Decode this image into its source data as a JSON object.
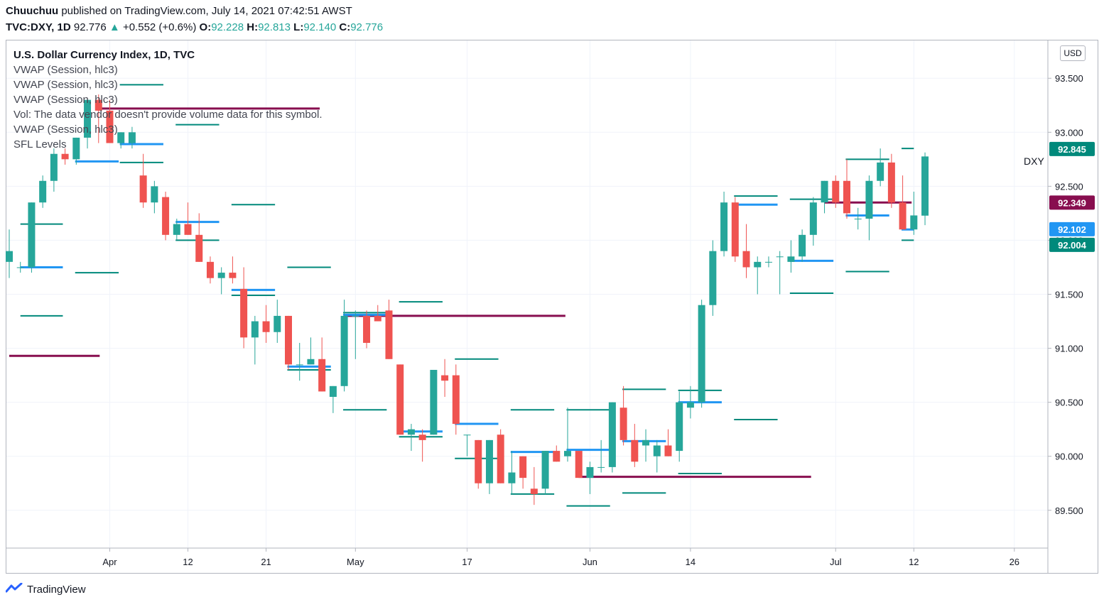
{
  "header": {
    "author": "Chuuchuu",
    "published_text": "published on TradingView.com, July 14, 2021 07:42:51 AWST",
    "symbol": "TVC:DXY, 1D",
    "last": "92.776",
    "change": "+0.552 (+0.6%)",
    "o_label": "O:",
    "o_value": "92.228",
    "h_label": "H:",
    "h_value": "92.813",
    "l_label": "L:",
    "l_value": "92.140",
    "c_label": "C:",
    "c_value": "92.776"
  },
  "legend": {
    "title": "U.S. Dollar Currency Index, 1D, TVC",
    "lines": [
      "VWAP (Session, hlc3)",
      "VWAP (Session, hlc3)",
      "VWAP (Session, hlc3)",
      "Vol: The data vendor doesn't provide volume data for this symbol.",
      "VWAP (Session, hlc3)",
      "SFL Levels"
    ]
  },
  "currency_button": "USD",
  "series_label": "DXY",
  "footer_brand": "TradingView",
  "colors": {
    "up": "#26a69a",
    "down": "#ef5350",
    "vwap": "#2196f3",
    "level_teal": "#00897b",
    "level_maroon": "#880e4f"
  },
  "chart_data": {
    "type": "candlestick",
    "symbol": "DXY",
    "timeframe": "1D",
    "ylim": [
      89.15,
      93.85
    ],
    "y_ticks": [
      89.5,
      90.0,
      90.5,
      91.0,
      91.5,
      92.0,
      92.5,
      93.0,
      93.5
    ],
    "y_tick_labels": [
      "89.500",
      "90.000",
      "90.500",
      "91.000",
      "91.500",
      "92.000",
      "92.500",
      "93.000",
      "93.500"
    ],
    "x_ticks": [
      {
        "i": 9,
        "label": "Apr"
      },
      {
        "i": 16,
        "label": "12"
      },
      {
        "i": 23,
        "label": "21"
      },
      {
        "i": 31,
        "label": "May"
      },
      {
        "i": 41,
        "label": "17"
      },
      {
        "i": 52,
        "label": "Jun"
      },
      {
        "i": 61,
        "label": "14"
      },
      {
        "i": 74,
        "label": "Jul"
      },
      {
        "i": 81,
        "label": "12"
      },
      {
        "i": 90,
        "label": "26"
      }
    ],
    "candles": [
      [
        91.8,
        92.1,
        91.65,
        91.9
      ],
      [
        91.75,
        91.8,
        91.7,
        91.75
      ],
      [
        91.75,
        92.35,
        91.7,
        92.35
      ],
      [
        92.35,
        92.6,
        92.3,
        92.55
      ],
      [
        92.55,
        92.85,
        92.45,
        92.8
      ],
      [
        92.8,
        92.85,
        92.7,
        92.75
      ],
      [
        92.75,
        92.95,
        92.7,
        92.95
      ],
      [
        92.95,
        93.3,
        92.85,
        93.3
      ],
      [
        93.3,
        93.35,
        92.9,
        93.2
      ],
      [
        93.2,
        93.3,
        92.9,
        92.9
      ],
      [
        92.9,
        93.0,
        92.85,
        93.0
      ],
      [
        92.9,
        93.05,
        92.85,
        93.0
      ],
      [
        92.6,
        92.8,
        92.3,
        92.35
      ],
      [
        92.35,
        92.55,
        92.25,
        92.5
      ],
      [
        92.4,
        92.45,
        92.0,
        92.05
      ],
      [
        92.05,
        92.2,
        92.0,
        92.15
      ],
      [
        92.15,
        92.35,
        92.05,
        92.05
      ],
      [
        92.05,
        92.25,
        91.8,
        91.8
      ],
      [
        91.8,
        91.85,
        91.6,
        91.65
      ],
      [
        91.65,
        91.75,
        91.5,
        91.7
      ],
      [
        91.7,
        91.85,
        91.6,
        91.65
      ],
      [
        91.55,
        91.75,
        91.0,
        91.1
      ],
      [
        91.1,
        91.3,
        90.85,
        91.25
      ],
      [
        91.25,
        91.4,
        91.05,
        91.15
      ],
      [
        91.15,
        91.45,
        91.05,
        91.3
      ],
      [
        91.3,
        91.3,
        90.8,
        90.85
      ],
      [
        90.85,
        91.05,
        90.7,
        90.85
      ],
      [
        90.85,
        91.1,
        90.85,
        90.9
      ],
      [
        90.9,
        91.1,
        90.6,
        90.6
      ],
      [
        90.55,
        90.65,
        90.4,
        90.65
      ],
      [
        90.65,
        91.45,
        90.6,
        91.3
      ],
      [
        91.3,
        91.35,
        90.9,
        91.3
      ],
      [
        91.3,
        91.35,
        91.0,
        91.05
      ],
      [
        91.3,
        91.4,
        91.25,
        91.25
      ],
      [
        91.35,
        91.45,
        90.9,
        90.9
      ],
      [
        90.85,
        90.85,
        90.2,
        90.2
      ],
      [
        90.2,
        90.3,
        90.05,
        90.25
      ],
      [
        90.2,
        90.25,
        89.95,
        90.15
      ],
      [
        90.2,
        90.8,
        90.2,
        90.8
      ],
      [
        90.75,
        90.9,
        90.55,
        90.7
      ],
      [
        90.75,
        90.85,
        90.2,
        90.3
      ],
      [
        90.2,
        90.2,
        90.0,
        90.2
      ],
      [
        90.15,
        90.15,
        89.7,
        89.75
      ],
      [
        89.75,
        90.15,
        89.65,
        90.15
      ],
      [
        90.2,
        90.25,
        89.75,
        89.75
      ],
      [
        89.75,
        90.05,
        89.65,
        89.85
      ],
      [
        90.0,
        90.0,
        89.7,
        89.8
      ],
      [
        89.7,
        89.9,
        89.55,
        89.65
      ],
      [
        89.7,
        90.05,
        89.65,
        90.05
      ],
      [
        90.05,
        90.1,
        89.95,
        89.95
      ],
      [
        90.0,
        90.45,
        89.95,
        90.05
      ],
      [
        90.05,
        90.05,
        89.8,
        89.8
      ],
      [
        89.8,
        89.95,
        89.65,
        89.9
      ],
      [
        89.9,
        90.15,
        89.85,
        89.9
      ],
      [
        89.9,
        90.5,
        89.85,
        90.5
      ],
      [
        90.45,
        90.65,
        90.1,
        90.15
      ],
      [
        90.15,
        90.3,
        89.9,
        89.95
      ],
      [
        90.1,
        90.25,
        89.95,
        90.15
      ],
      [
        90.0,
        90.15,
        89.85,
        90.1
      ],
      [
        90.1,
        90.25,
        90.0,
        90.0
      ],
      [
        90.05,
        90.6,
        89.95,
        90.5
      ],
      [
        90.45,
        90.65,
        90.35,
        90.5
      ],
      [
        90.5,
        91.45,
        90.45,
        91.4
      ],
      [
        91.4,
        92.0,
        91.3,
        91.9
      ],
      [
        91.9,
        92.45,
        91.85,
        92.35
      ],
      [
        92.35,
        92.4,
        91.8,
        91.85
      ],
      [
        91.9,
        92.15,
        91.65,
        91.75
      ],
      [
        91.75,
        91.85,
        91.5,
        91.8
      ],
      [
        91.8,
        91.85,
        91.75,
        91.8
      ],
      [
        91.85,
        91.9,
        91.5,
        91.85
      ],
      [
        91.8,
        92.0,
        91.7,
        91.85
      ],
      [
        91.85,
        92.1,
        91.8,
        92.05
      ],
      [
        92.05,
        92.4,
        91.95,
        92.35
      ],
      [
        92.35,
        92.55,
        92.25,
        92.55
      ],
      [
        92.55,
        92.6,
        92.3,
        92.35
      ],
      [
        92.55,
        92.75,
        92.2,
        92.25
      ],
      [
        92.2,
        92.3,
        92.1,
        92.2
      ],
      [
        92.2,
        92.6,
        92.0,
        92.55
      ],
      [
        92.55,
        92.85,
        92.5,
        92.72
      ],
      [
        92.72,
        92.8,
        92.3,
        92.35
      ],
      [
        92.35,
        92.6,
        92.1,
        92.1
      ],
      [
        92.1,
        92.45,
        92.05,
        92.23
      ],
      [
        92.228,
        92.813,
        92.14,
        92.776
      ]
    ],
    "sfl_levels": [
      {
        "i0": 1.0,
        "i1": 4.8,
        "price": 92.15,
        "color": "teal"
      },
      {
        "i0": 1.0,
        "i1": 4.8,
        "price": 91.3,
        "color": "teal"
      },
      {
        "i0": 0.0,
        "i1": 8.1,
        "price": 90.93,
        "color": "maroon"
      },
      {
        "i0": 5.9,
        "i1": 9.8,
        "price": 91.7,
        "color": "teal"
      },
      {
        "i0": 9.9,
        "i1": 13.8,
        "price": 93.44,
        "color": "teal"
      },
      {
        "i0": 9.9,
        "i1": 13.8,
        "price": 92.72,
        "color": "teal"
      },
      {
        "i0": 14.9,
        "i1": 18.8,
        "price": 93.07,
        "color": "teal"
      },
      {
        "i0": 14.9,
        "i1": 18.8,
        "price": 92.0,
        "color": "teal"
      },
      {
        "i0": 8.0,
        "i1": 27.8,
        "price": 93.22,
        "color": "maroon"
      },
      {
        "i0": 19.9,
        "i1": 23.8,
        "price": 92.33,
        "color": "teal"
      },
      {
        "i0": 19.9,
        "i1": 23.8,
        "price": 91.49,
        "color": "teal"
      },
      {
        "i0": 24.9,
        "i1": 28.8,
        "price": 91.75,
        "color": "teal"
      },
      {
        "i0": 24.9,
        "i1": 28.8,
        "price": 90.8,
        "color": "teal"
      },
      {
        "i0": 29.9,
        "i1": 33.8,
        "price": 91.33,
        "color": "teal"
      },
      {
        "i0": 29.9,
        "i1": 33.8,
        "price": 90.43,
        "color": "teal"
      },
      {
        "i0": 30.0,
        "i1": 49.8,
        "price": 91.3,
        "color": "maroon"
      },
      {
        "i0": 34.9,
        "i1": 38.8,
        "price": 91.43,
        "color": "teal"
      },
      {
        "i0": 34.9,
        "i1": 38.8,
        "price": 90.18,
        "color": "teal"
      },
      {
        "i0": 39.9,
        "i1": 43.8,
        "price": 90.9,
        "color": "teal"
      },
      {
        "i0": 39.9,
        "i1": 43.8,
        "price": 89.98,
        "color": "teal"
      },
      {
        "i0": 44.9,
        "i1": 48.8,
        "price": 90.43,
        "color": "teal"
      },
      {
        "i0": 44.9,
        "i1": 48.8,
        "price": 89.65,
        "color": "teal"
      },
      {
        "i0": 49.9,
        "i1": 53.8,
        "price": 90.43,
        "color": "teal"
      },
      {
        "i0": 49.9,
        "i1": 53.8,
        "price": 89.54,
        "color": "teal"
      },
      {
        "i0": 51.0,
        "i1": 71.8,
        "price": 89.81,
        "color": "maroon"
      },
      {
        "i0": 54.9,
        "i1": 58.8,
        "price": 90.62,
        "color": "teal"
      },
      {
        "i0": 54.9,
        "i1": 58.8,
        "price": 89.66,
        "color": "teal"
      },
      {
        "i0": 59.9,
        "i1": 63.8,
        "price": 90.61,
        "color": "teal"
      },
      {
        "i0": 59.9,
        "i1": 63.8,
        "price": 89.84,
        "color": "teal"
      },
      {
        "i0": 64.9,
        "i1": 68.8,
        "price": 92.41,
        "color": "teal"
      },
      {
        "i0": 64.9,
        "i1": 68.8,
        "price": 90.34,
        "color": "teal"
      },
      {
        "i0": 69.9,
        "i1": 73.8,
        "price": 92.38,
        "color": "teal"
      },
      {
        "i0": 69.9,
        "i1": 73.8,
        "price": 91.51,
        "color": "teal"
      },
      {
        "i0": 74.9,
        "i1": 78.8,
        "price": 92.75,
        "color": "teal"
      },
      {
        "i0": 74.9,
        "i1": 78.8,
        "price": 91.71,
        "color": "teal"
      },
      {
        "i0": 73.0,
        "i1": 80.8,
        "price": 92.35,
        "color": "maroon"
      },
      {
        "i0": 79.9,
        "i1": 81.0,
        "price": 92.85,
        "color": "teal"
      },
      {
        "i0": 79.9,
        "i1": 81.0,
        "price": 92.0,
        "color": "teal"
      }
    ],
    "vwap_segments": [
      {
        "i0": 1.0,
        "i1": 4.8,
        "price": 91.75
      },
      {
        "i0": 5.9,
        "i1": 9.8,
        "price": 92.73
      },
      {
        "i0": 9.9,
        "i1": 13.8,
        "price": 92.89
      },
      {
        "i0": 14.9,
        "i1": 18.8,
        "price": 92.17
      },
      {
        "i0": 19.9,
        "i1": 23.8,
        "price": 91.54
      },
      {
        "i0": 24.9,
        "i1": 28.8,
        "price": 90.83
      },
      {
        "i0": 29.9,
        "i1": 33.8,
        "price": 91.31
      },
      {
        "i0": 34.9,
        "i1": 38.8,
        "price": 90.23
      },
      {
        "i0": 39.9,
        "i1": 43.8,
        "price": 90.3
      },
      {
        "i0": 44.9,
        "i1": 48.8,
        "price": 90.04
      },
      {
        "i0": 49.9,
        "i1": 53.8,
        "price": 90.06
      },
      {
        "i0": 54.9,
        "i1": 58.8,
        "price": 90.14
      },
      {
        "i0": 59.9,
        "i1": 63.8,
        "price": 90.5
      },
      {
        "i0": 64.9,
        "i1": 68.8,
        "price": 92.33
      },
      {
        "i0": 69.9,
        "i1": 73.8,
        "price": 91.81
      },
      {
        "i0": 74.9,
        "i1": 78.8,
        "price": 92.23
      },
      {
        "i0": 79.9,
        "i1": 81.0,
        "price": 92.1
      }
    ],
    "price_labels": [
      {
        "price": 92.845,
        "text": "92.845",
        "color": "#00897b"
      },
      {
        "price": 92.349,
        "text": "92.349",
        "color": "#880e4f"
      },
      {
        "price": 92.102,
        "text": "92.102",
        "color": "#2196f3"
      },
      {
        "price": 92.004,
        "text": "92.004",
        "color": "#00897b"
      }
    ]
  }
}
